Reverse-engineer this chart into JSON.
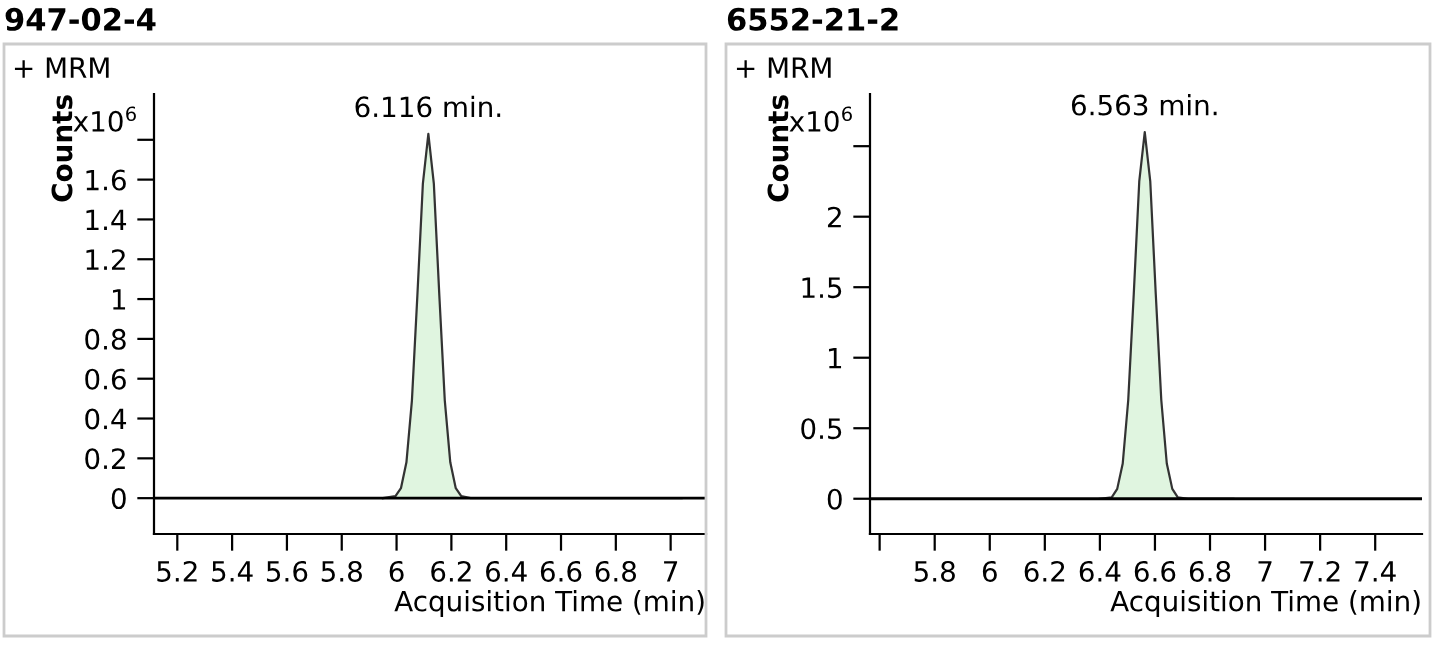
{
  "chart_data": [
    {
      "type": "area",
      "title": "947-02-4",
      "ylabel": "Counts",
      "xlabel": "Acquisition Time (min)",
      "annotations": [
        "+ MRM",
        "x10$^{6}$",
        {
          "text": "6.116 min.",
          "x": 6.116,
          "y": 1.83
        }
      ],
      "series": [
        {
          "color": "#e0f5e0",
          "x": [
            5.95,
            5.996,
            6.016,
            6.036,
            6.056,
            6.076,
            6.096,
            6.116,
            6.136,
            6.156,
            6.176,
            6.196,
            6.216,
            6.236,
            6.27,
            6.45,
            7.04
          ],
          "values": [
            0,
            0.01,
            0.05,
            0.18,
            0.49,
            1.02,
            1.58,
            1.83,
            1.58,
            1.02,
            0.49,
            0.18,
            0.05,
            0.01,
            0,
            0,
            0
          ]
        }
      ],
      "xlim": [
        5.115,
        7.129
      ],
      "xticks": [
        5.2,
        5.4,
        5.6,
        5.8,
        6,
        6.2,
        6.4,
        6.6,
        6.8,
        7
      ],
      "ylim": [
        -0.18,
        2.03
      ],
      "yticks": [
        0,
        0.2,
        0.4,
        0.6,
        0.8,
        1,
        1.2,
        1.4,
        1.6,
        {
          "value": 1.8,
          "label": null
        }
      ],
      "ref_lines": [
        {
          "axis": "y",
          "value": 0,
          "color": "#000000"
        }
      ],
      "grid": false,
      "legend": false
    },
    {
      "type": "area",
      "title": "6552-21-2",
      "ylabel": "Counts",
      "xlabel": "Acquisition Time (min)",
      "annotations": [
        "+ MRM",
        "x10$^{6}$",
        {
          "text": "6.563 min.",
          "x": 6.563,
          "y": 2.6
        }
      ],
      "series": [
        {
          "color": "#e0f5e0",
          "x": [
            6.4,
            6.443,
            6.463,
            6.483,
            6.503,
            6.523,
            6.543,
            6.563,
            6.583,
            6.603,
            6.623,
            6.643,
            6.663,
            6.683,
            6.72,
            6.885
          ],
          "values": [
            0,
            0.01,
            0.07,
            0.25,
            0.7,
            1.45,
            2.25,
            2.6,
            2.25,
            1.45,
            0.7,
            0.25,
            0.07,
            0.01,
            0,
            0
          ]
        }
      ],
      "xlim": [
        5.565,
        7.57
      ],
      "xticks": [
        {
          "value": 5.6,
          "label": null
        },
        5.8,
        6,
        6.2,
        6.4,
        6.6,
        6.8,
        7,
        7.2,
        7.4
      ],
      "ylim": [
        -0.25,
        2.87
      ],
      "yticks": [
        0,
        0.5,
        1,
        1.5,
        2,
        {
          "value": 2.5,
          "label": null
        }
      ],
      "ref_lines": [
        {
          "axis": "y",
          "value": 0,
          "color": "#000000"
        }
      ],
      "grid": false,
      "legend": false
    }
  ]
}
